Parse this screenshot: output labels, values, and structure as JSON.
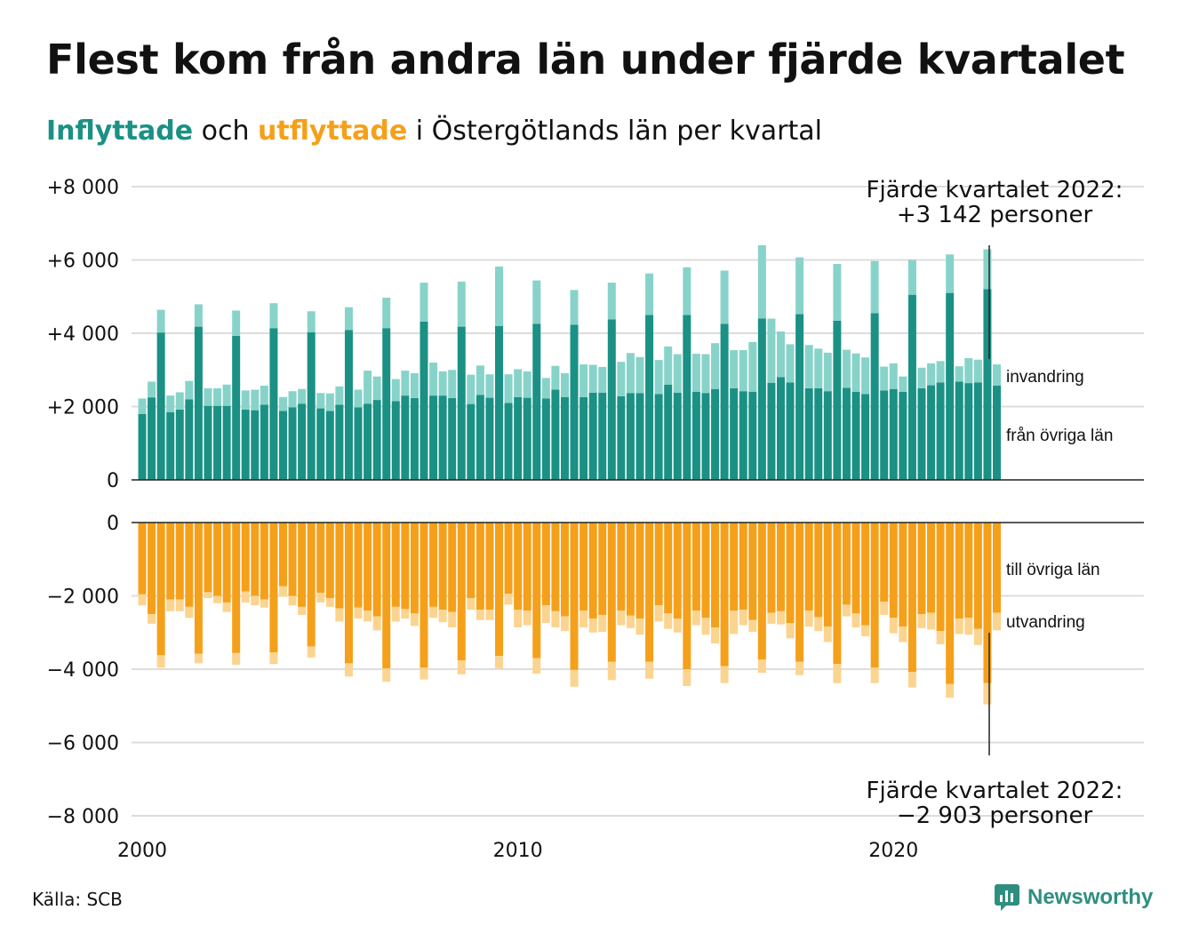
{
  "title": "Flest kom från andra län under fjärde kvartalet",
  "subtitle": {
    "in": "Inflyttade",
    "mid": " och ",
    "ut": "utflyttade",
    "rest": " i Östergötlands län per kvartal"
  },
  "source": "Källa: SCB",
  "brand": "Newsworthy",
  "colors": {
    "in_dark": "#1a9184",
    "in_light": "#88d3c9",
    "ut_dark": "#f5a01a",
    "ut_light": "#fbd490",
    "grid": "#dddddd",
    "axis": "#222222"
  },
  "annotations": {
    "top": [
      "Fjärde kvartalet 2022:",
      "+3 142 personer"
    ],
    "bottom": [
      "Fjärde kvartalet 2022:",
      "−2 903 personer"
    ]
  },
  "legend_labels": {
    "in_light": "invandring",
    "in_dark": "från övriga län",
    "ut_dark": "till övriga län",
    "ut_light": "utvandring"
  },
  "chart_data": {
    "type": "bar",
    "x_start": "2000 Q1",
    "x_ticks": [
      "2000",
      "2010",
      "2020"
    ],
    "y_ticks_top": [
      "+8 000",
      "+6 000",
      "+4 000",
      "+2 000",
      "0"
    ],
    "y_ticks_bottom": [
      "0",
      "−2 000",
      "−4 000",
      "−6 000",
      "−8 000"
    ],
    "ylim_top": [
      0,
      8000
    ],
    "ylim_bottom": [
      -8000,
      0
    ],
    "series": [
      {
        "name": "från övriga län",
        "values": [
          1800,
          2250,
          4020,
          1850,
          1920,
          2200,
          4180,
          2020,
          2020,
          2020,
          3930,
          1920,
          1900,
          2050,
          4140,
          1880,
          1980,
          2080,
          4030,
          1950,
          1880,
          2050,
          4090,
          1980,
          2080,
          2180,
          4140,
          2150,
          2300,
          2230,
          4320,
          2300,
          2300,
          2230,
          4180,
          2070,
          2320,
          2240,
          4200,
          2100,
          2260,
          2240,
          4260,
          2220,
          2460,
          2260,
          4230,
          2260,
          2380,
          2380,
          4380,
          2280,
          2370,
          2370,
          4500,
          2340,
          2600,
          2380,
          4500,
          2400,
          2370,
          2480,
          4260,
          2500,
          2420,
          2400,
          4400,
          2650,
          2800,
          2660,
          4520,
          2500,
          2500,
          2420,
          4340,
          2510,
          2400,
          2340,
          4550,
          2440,
          2480,
          2400,
          5050,
          2500,
          2580,
          2660,
          5100,
          2680,
          2640,
          2660,
          5200,
          2570
        ]
      },
      {
        "name": "invandring",
        "values": [
          420,
          430,
          620,
          450,
          470,
          500,
          610,
          480,
          480,
          580,
          690,
          520,
          560,
          520,
          680,
          380,
          440,
          400,
          570,
          420,
          480,
          500,
          620,
          480,
          900,
          640,
          830,
          600,
          680,
          680,
          1060,
          900,
          660,
          770,
          1230,
          800,
          800,
          640,
          1620,
          780,
          760,
          720,
          1180,
          560,
          650,
          650,
          950,
          890,
          760,
          700,
          1000,
          940,
          1090,
          980,
          1130,
          930,
          1040,
          1050,
          1300,
          1040,
          1060,
          1250,
          1450,
          1040,
          1120,
          1360,
          2000,
          1750,
          1250,
          1040,
          1550,
          1180,
          1080,
          1050,
          1550,
          1040,
          1050,
          1000,
          1420,
          650,
          700,
          420,
          950,
          560,
          600,
          580,
          1050,
          420,
          680,
          620,
          1090,
          580
        ]
      },
      {
        "name": "till övriga län",
        "values": [
          -1960,
          -2500,
          -3620,
          -2100,
          -2100,
          -2300,
          -3580,
          -1900,
          -2000,
          -2180,
          -3560,
          -1880,
          -2000,
          -2100,
          -3540,
          -1740,
          -2000,
          -2300,
          -3380,
          -1920,
          -2060,
          -2340,
          -3840,
          -2320,
          -2400,
          -2560,
          -3980,
          -2300,
          -2360,
          -2480,
          -3960,
          -2300,
          -2380,
          -2440,
          -3760,
          -2060,
          -2380,
          -2380,
          -3640,
          -1940,
          -2380,
          -2400,
          -3700,
          -2260,
          -2420,
          -2560,
          -4020,
          -2400,
          -2620,
          -2520,
          -3800,
          -2400,
          -2540,
          -2620,
          -3800,
          -2260,
          -2480,
          -2620,
          -4000,
          -2400,
          -2600,
          -2860,
          -3920,
          -2400,
          -2380,
          -2660,
          -3740,
          -2460,
          -2420,
          -2740,
          -3800,
          -2400,
          -2580,
          -2840,
          -3860,
          -2240,
          -2480,
          -2800,
          -3960,
          -2160,
          -2600,
          -2840,
          -4080,
          -2500,
          -2460,
          -2960,
          -4400,
          -2620,
          -2600,
          -2900,
          -4380,
          -2460
        ]
      },
      {
        "name": "utvandring",
        "values": [
          -300,
          -260,
          -340,
          -320,
          -320,
          -300,
          -260,
          -160,
          -200,
          -260,
          -320,
          -300,
          -260,
          -220,
          -320,
          -280,
          -260,
          -220,
          -300,
          -260,
          -240,
          -360,
          -360,
          -300,
          -300,
          -380,
          -360,
          -400,
          -260,
          -340,
          -320,
          -300,
          -340,
          -420,
          -380,
          -320,
          -280,
          -280,
          -340,
          -300,
          -480,
          -400,
          -420,
          -480,
          -440,
          -400,
          -460,
          -460,
          -380,
          -460,
          -500,
          -400,
          -340,
          -440,
          -460,
          -440,
          -420,
          -380,
          -460,
          -400,
          -460,
          -440,
          -460,
          -640,
          -420,
          -320,
          -360,
          -300,
          -360,
          -420,
          -360,
          -440,
          -380,
          -420,
          -520,
          -320,
          -380,
          -300,
          -420,
          -360,
          -420,
          -420,
          -420,
          -380,
          -460,
          -360,
          -380,
          -420,
          -460,
          -440,
          -580,
          -480
        ]
      }
    ]
  }
}
